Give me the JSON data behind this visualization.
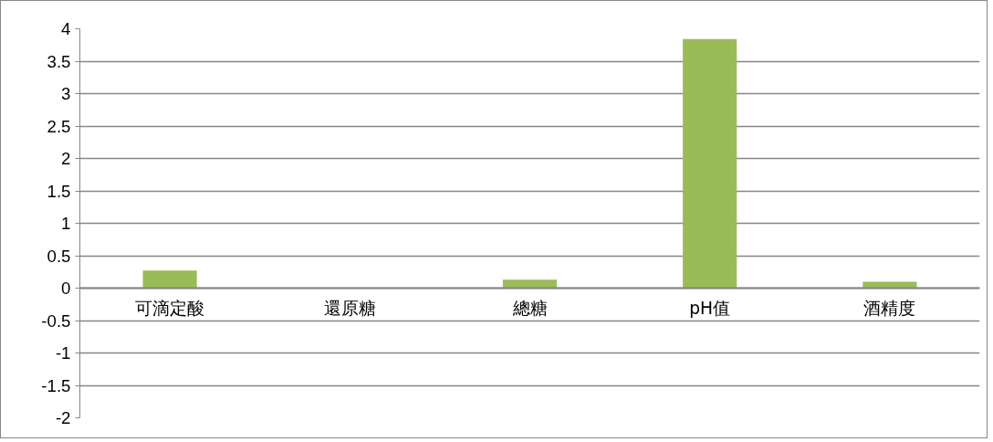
{
  "chart_data": {
    "type": "bar",
    "categories": [
      "可滴定酸",
      "還原糖",
      "總糖",
      "pH值",
      "酒精度"
    ],
    "series": [
      {
        "color": "#9bbb59",
        "values": [
          0.27,
          0,
          0.13,
          3.84,
          0.1
        ]
      }
    ],
    "ylim": [
      -2,
      4
    ],
    "yticks": [
      -2,
      -1.5,
      -1,
      -0.5,
      0,
      0.5,
      1,
      1.5,
      2,
      2.5,
      3,
      3.5,
      4
    ],
    "grid": "y"
  }
}
